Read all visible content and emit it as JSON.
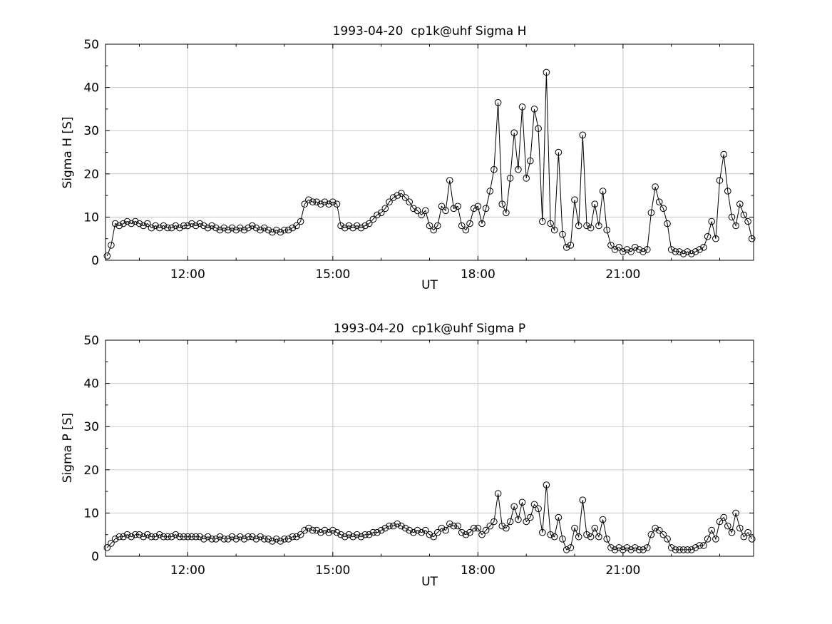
{
  "page": {
    "background": "#ffffff"
  },
  "chart_data": [
    {
      "type": "line",
      "title": "1993-04-20  cp1k@uhf Sigma H",
      "xlabel": "UT",
      "ylabel": "Sigma H [S]",
      "series_name": "Sigma H",
      "ylim": [
        0,
        50
      ],
      "yticks": [
        0,
        10,
        20,
        30,
        40,
        50
      ],
      "ytick_labels": [
        "0",
        "10",
        "20",
        "30",
        "40",
        "50"
      ],
      "xlim_hours": [
        10.3,
        23.7
      ],
      "xticks_hours": [
        12,
        15,
        18,
        21
      ],
      "xtick_labels": [
        "12:00",
        "15:00",
        "18:00",
        "21:00"
      ],
      "x_start": "10:20",
      "x_step_minutes": 5,
      "grid": true,
      "grid_color": "#c8c8c8",
      "line_color": "#000000",
      "marker": "circle",
      "values": [
        1,
        3.5,
        8.5,
        8,
        8.5,
        9,
        8.5,
        9,
        8.5,
        8,
        8.5,
        7.5,
        8,
        7.5,
        8,
        7.5,
        7.5,
        8,
        7.5,
        8,
        8,
        8.5,
        8,
        8.5,
        8,
        7.5,
        8,
        7.5,
        7,
        7.5,
        7,
        7.5,
        7,
        7.5,
        7,
        7.5,
        8,
        7.5,
        7,
        7.5,
        7,
        6.5,
        7,
        6.5,
        7,
        7,
        7.5,
        8,
        9,
        13,
        14,
        13.5,
        13.5,
        13,
        13.5,
        13,
        13.5,
        13,
        8,
        7.5,
        8,
        7.5,
        8,
        7.5,
        8,
        8.5,
        9.5,
        10.5,
        11,
        12,
        13.5,
        14.5,
        15,
        15.5,
        14.5,
        13.5,
        12,
        11.5,
        10.5,
        11.5,
        8,
        7,
        8,
        12.5,
        11.5,
        18.5,
        12,
        12.5,
        8,
        7,
        8.5,
        12,
        12.5,
        8.5,
        12,
        16,
        21,
        36.5,
        13,
        11,
        19,
        29.5,
        21,
        35.5,
        19,
        23,
        35,
        30.5,
        9,
        43.5,
        8.5,
        7,
        25,
        6,
        3,
        3.5,
        14,
        8,
        29,
        8,
        7.5,
        13,
        8,
        16,
        7,
        3.5,
        2.5,
        3,
        2,
        2.5,
        2,
        3,
        2.5,
        2,
        2.5,
        11,
        17,
        13.5,
        12,
        8.5,
        2.5,
        2,
        2,
        1.5,
        2,
        1.5,
        2,
        2.5,
        3,
        5.5,
        9,
        5,
        18.5,
        24.5,
        16,
        10,
        8,
        13,
        10.5,
        9,
        5
      ]
    },
    {
      "type": "line",
      "title": "1993-04-20  cp1k@uhf Sigma P",
      "xlabel": "UT",
      "ylabel": "Sigma P [S]",
      "series_name": "Sigma P",
      "ylim": [
        0,
        50
      ],
      "yticks": [
        0,
        10,
        20,
        30,
        40,
        50
      ],
      "ytick_labels": [
        "0",
        "10",
        "20",
        "30",
        "40",
        "50"
      ],
      "xlim_hours": [
        10.3,
        23.7
      ],
      "xticks_hours": [
        12,
        15,
        18,
        21
      ],
      "xtick_labels": [
        "12:00",
        "15:00",
        "18:00",
        "21:00"
      ],
      "x_start": "10:20",
      "x_step_minutes": 5,
      "grid": true,
      "grid_color": "#c8c8c8",
      "line_color": "#000000",
      "marker": "circle",
      "values": [
        2,
        3,
        4,
        4.5,
        4.5,
        5,
        4.5,
        5,
        5,
        4.5,
        5,
        4.5,
        4.5,
        5,
        4.5,
        4.5,
        4.5,
        5,
        4.5,
        4.5,
        4.5,
        4.5,
        4.5,
        4.5,
        4,
        4.5,
        4,
        4,
        4.5,
        4,
        4,
        4.5,
        4,
        4.5,
        4,
        4.5,
        4.5,
        4,
        4.5,
        4,
        4,
        3.5,
        4,
        3.5,
        4,
        4,
        4.5,
        4.5,
        5,
        6,
        6.5,
        6,
        6,
        5.5,
        6,
        5.5,
        6,
        5.5,
        5,
        4.5,
        5,
        4.5,
        5,
        4.5,
        5,
        5,
        5.5,
        5.5,
        6,
        6.5,
        7,
        7,
        7.5,
        7,
        6.5,
        6,
        5.5,
        6,
        5.5,
        6,
        5,
        4.5,
        5.5,
        6.5,
        6,
        7.5,
        7,
        7,
        5.5,
        5,
        5.5,
        6.5,
        6.5,
        5,
        6,
        7,
        8,
        14.5,
        7,
        6.5,
        8,
        11.5,
        8.5,
        12.5,
        8,
        9,
        12,
        11,
        5.5,
        16.5,
        5,
        4.5,
        9,
        4,
        1.5,
        2,
        6.5,
        4.5,
        13,
        5,
        4.5,
        6.5,
        4.5,
        8.5,
        4,
        2,
        1.5,
        2,
        1.5,
        2,
        1.5,
        2,
        1.5,
        1.5,
        2,
        5,
        6.5,
        6,
        5,
        4,
        2,
        1.5,
        1.5,
        1.5,
        1.5,
        1.5,
        2,
        2.5,
        2.5,
        4,
        6,
        4,
        8,
        9,
        7,
        5.5,
        10,
        6.5,
        4.5,
        5.5,
        4
      ]
    }
  ]
}
